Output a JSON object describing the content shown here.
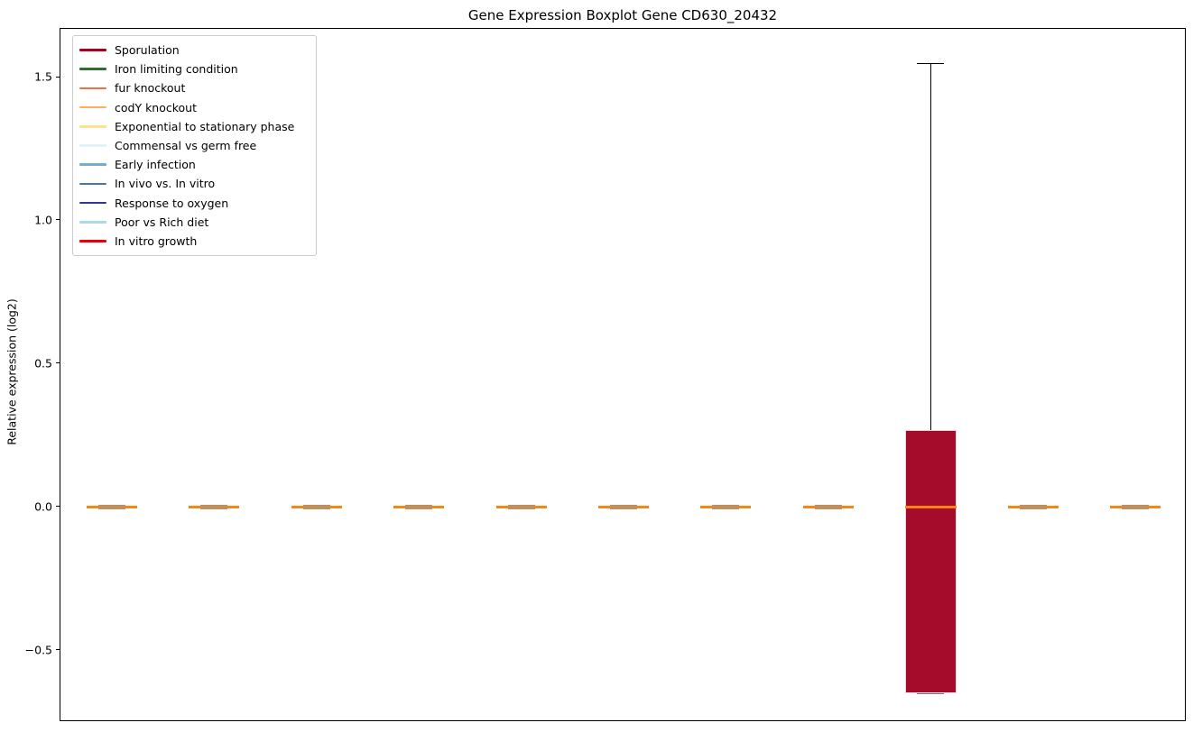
{
  "figure": {
    "background": "#ffffff"
  },
  "chart_data": {
    "type": "boxplot",
    "title": "Gene Expression Boxplot Gene CD630_20432",
    "ylabel": "Relative expression (log2)",
    "xlabel": "",
    "grid": false,
    "ylim": [
      -0.75,
      1.67
    ],
    "yticks": {
      "values": [
        -0.5,
        0.0,
        0.5,
        1.0,
        1.5
      ],
      "labels": [
        "−0.5",
        "0.0",
        "0.5",
        "1.0",
        "1.5"
      ]
    },
    "x_tick_labels": [],
    "legend": {
      "position": "upper left",
      "entries": [
        {
          "label": "Sporulation",
          "color": "#a50026"
        },
        {
          "label": "Iron limiting condition",
          "color": "#2d6e32"
        },
        {
          "label": "fur knockout",
          "color": "#f46d43"
        },
        {
          "label": "codY knockout",
          "color": "#fdae61"
        },
        {
          "label": "Exponential to stationary phase",
          "color": "#fee090"
        },
        {
          "label": "Commensal vs germ free",
          "color": "#e0f3f8"
        },
        {
          "label": "Early infection",
          "color": "#74add1"
        },
        {
          "label": "In vivo vs. In vitro",
          "color": "#4575b4"
        },
        {
          "label": "Response to oxygen",
          "color": "#313695"
        },
        {
          "label": "Poor vs Rich diet",
          "color": "#abd9e9"
        },
        {
          "label": "In vitro growth",
          "color": "#e8000b"
        }
      ]
    },
    "boxes": [
      {
        "condition": "Sporulation",
        "position": 1,
        "median": 0.0,
        "q1": -0.005,
        "q3": 0.005,
        "whisker_low": -0.01,
        "whisker_high": 0.01,
        "fill": "#c0905c",
        "flat": true
      },
      {
        "condition": "Iron limiting condition",
        "position": 2,
        "median": 0.0,
        "q1": -0.005,
        "q3": 0.005,
        "whisker_low": -0.01,
        "whisker_high": 0.01,
        "fill": "#c0905c",
        "flat": true
      },
      {
        "condition": "fur knockout",
        "position": 3,
        "median": 0.0,
        "q1": -0.005,
        "q3": 0.005,
        "whisker_low": -0.01,
        "whisker_high": 0.01,
        "fill": "#c0905c",
        "flat": true
      },
      {
        "condition": "codY knockout",
        "position": 4,
        "median": 0.0,
        "q1": -0.005,
        "q3": 0.005,
        "whisker_low": -0.01,
        "whisker_high": 0.01,
        "fill": "#c0905c",
        "flat": true
      },
      {
        "condition": "Exponential to stationary phase",
        "position": 5,
        "median": 0.0,
        "q1": -0.005,
        "q3": 0.005,
        "whisker_low": -0.01,
        "whisker_high": 0.01,
        "fill": "#c0905c",
        "flat": true
      },
      {
        "condition": "Commensal vs germ free",
        "position": 6,
        "median": 0.0,
        "q1": -0.005,
        "q3": 0.005,
        "whisker_low": -0.01,
        "whisker_high": 0.01,
        "fill": "#c0905c",
        "flat": true
      },
      {
        "condition": "Early infection",
        "position": 7,
        "median": 0.0,
        "q1": -0.005,
        "q3": 0.005,
        "whisker_low": -0.01,
        "whisker_high": 0.01,
        "fill": "#c0905c",
        "flat": true
      },
      {
        "condition": "In vivo vs. In vitro",
        "position": 8,
        "median": 0.0,
        "q1": -0.005,
        "q3": 0.005,
        "whisker_low": -0.01,
        "whisker_high": 0.01,
        "fill": "#c0905c",
        "flat": true
      },
      {
        "condition": "Response to oxygen",
        "position": 9,
        "median": 0.0,
        "q1": -0.65,
        "q3": 0.27,
        "whisker_low": -0.65,
        "whisker_high": 1.55,
        "fill": "#a50b2b",
        "flat": false
      },
      {
        "condition": "Poor vs Rich diet",
        "position": 10,
        "median": 0.0,
        "q1": -0.005,
        "q3": 0.005,
        "whisker_low": -0.01,
        "whisker_high": 0.01,
        "fill": "#c0905c",
        "flat": true
      },
      {
        "condition": "In vitro growth",
        "position": 11,
        "median": 0.0,
        "q1": -0.005,
        "q3": 0.005,
        "whisker_low": -0.01,
        "whisker_high": 0.01,
        "fill": "#c0905c",
        "flat": true
      }
    ],
    "style": {
      "median_color": "#ff8310",
      "whisker_color": "#000000",
      "flat_cap_color": "#c0905c",
      "box_edge_color": "#f0d4da"
    }
  }
}
